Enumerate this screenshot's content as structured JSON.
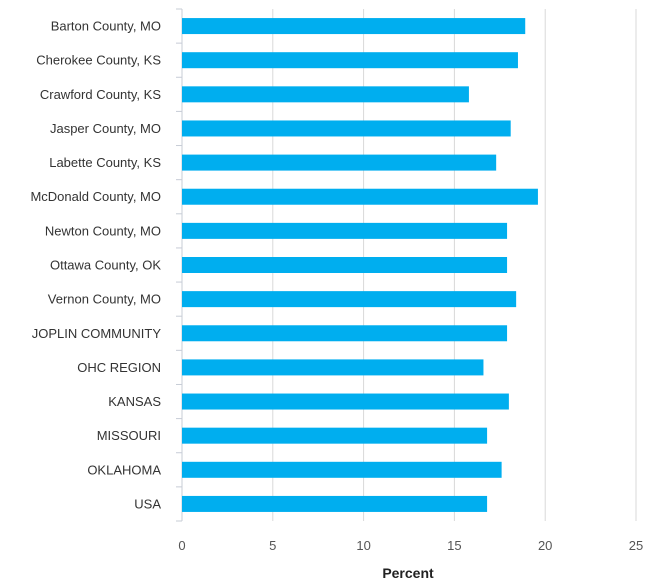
{
  "chart_data": {
    "type": "bar",
    "orientation": "horizontal",
    "categories": [
      "Barton County, MO",
      "Cherokee County, KS",
      "Crawford County, KS",
      "Jasper County, MO",
      "Labette County, KS",
      "McDonald County, MO",
      "Newton County, MO",
      "Ottawa County, OK",
      "Vernon County, MO",
      "JOPLIN COMMUNITY",
      "OHC REGION",
      "KANSAS",
      "MISSOURI",
      "OKLAHOMA",
      "USA"
    ],
    "values": [
      18.9,
      18.5,
      15.8,
      18.1,
      17.3,
      19.6,
      17.9,
      17.9,
      18.4,
      17.9,
      16.6,
      18.0,
      16.8,
      17.6,
      16.8
    ],
    "xlabel": "Percent",
    "ylabel": "",
    "xlim": [
      0,
      25
    ],
    "ticks": [
      0,
      5,
      10,
      15,
      20,
      25
    ],
    "grid": true,
    "legend": "none",
    "bar_color": "#00aeef",
    "grid_color": "#d9d9d9",
    "axis_color": "#c7ccd6"
  }
}
